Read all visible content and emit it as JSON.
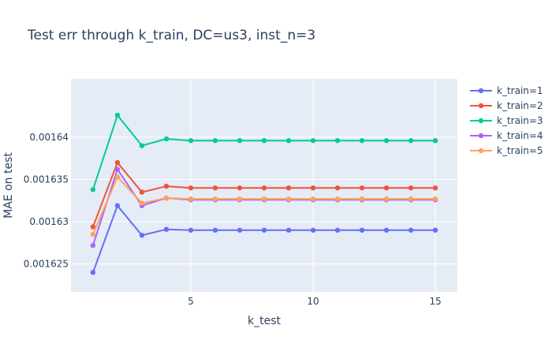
{
  "chart_data": {
    "type": "line",
    "title": "Test err through k_train, DC=us3, inst_n=3",
    "xlabel": "k_test",
    "ylabel": "MAE on test",
    "x": [
      1,
      2,
      3,
      4,
      5,
      6,
      7,
      8,
      9,
      10,
      11,
      12,
      13,
      14,
      15
    ],
    "xlim": [
      0.1,
      15.9
    ],
    "ylim": [
      0.0016217,
      0.0016469
    ],
    "xticks": [
      5,
      10,
      15
    ],
    "yticks": [
      0.001625,
      0.00163,
      0.001635,
      0.00164
    ],
    "ytick_labels": [
      "0.001625",
      "0.00163",
      "0.001635",
      "0.00164"
    ],
    "legend_position": "top-right",
    "grid": true,
    "series": [
      {
        "name": "k_train=1",
        "color": "#636efa",
        "values": [
          0.001624,
          0.0016319,
          0.0016284,
          0.0016291,
          0.001629,
          0.001629,
          0.001629,
          0.001629,
          0.001629,
          0.001629,
          0.001629,
          0.001629,
          0.001629,
          0.001629,
          0.001629
        ]
      },
      {
        "name": "k_train=2",
        "color": "#EF553B",
        "values": [
          0.0016294,
          0.001637,
          0.0016335,
          0.0016342,
          0.001634,
          0.001634,
          0.001634,
          0.001634,
          0.001634,
          0.001634,
          0.001634,
          0.001634,
          0.001634,
          0.001634,
          0.001634
        ]
      },
      {
        "name": "k_train=3",
        "color": "#00cc96",
        "values": [
          0.0016338,
          0.0016426,
          0.001639,
          0.0016398,
          0.0016396,
          0.0016396,
          0.0016396,
          0.0016396,
          0.0016396,
          0.0016396,
          0.0016396,
          0.0016396,
          0.0016396,
          0.0016396,
          0.0016396
        ]
      },
      {
        "name": "k_train=4",
        "color": "#ab63fa",
        "values": [
          0.0016272,
          0.0016362,
          0.0016319,
          0.0016328,
          0.0016326,
          0.0016326,
          0.0016326,
          0.0016326,
          0.0016326,
          0.0016326,
          0.0016326,
          0.0016326,
          0.0016326,
          0.0016326,
          0.0016326
        ]
      },
      {
        "name": "k_train=5",
        "color": "#FFA15A",
        "values": [
          0.0016285,
          0.0016353,
          0.0016322,
          0.0016328,
          0.0016327,
          0.0016327,
          0.0016327,
          0.0016327,
          0.0016327,
          0.0016327,
          0.0016327,
          0.0016327,
          0.0016327,
          0.0016327,
          0.0016327
        ]
      }
    ]
  }
}
